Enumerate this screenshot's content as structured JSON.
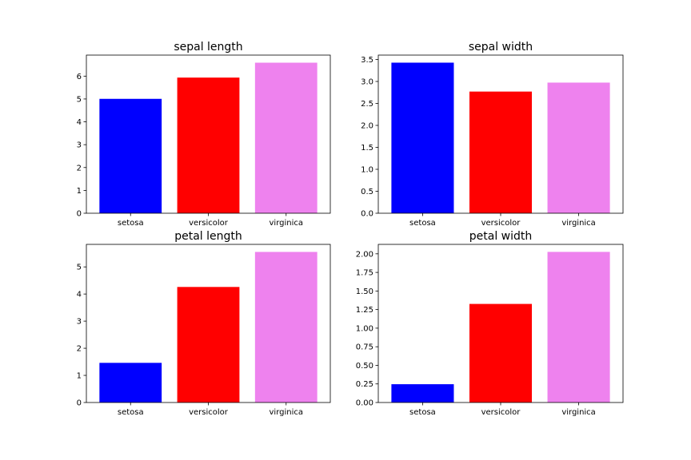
{
  "chart_data": [
    {
      "type": "bar",
      "title": "sepal length",
      "categories": [
        "setosa",
        "versicolor",
        "virginica"
      ],
      "values": [
        5.006,
        5.936,
        6.588
      ],
      "colors": [
        "#0000ff",
        "#ff0000",
        "#ee82ee"
      ],
      "ylim": [
        0,
        6.92
      ],
      "yticks": [
        0,
        1,
        2,
        3,
        4,
        5,
        6
      ],
      "ytick_labels": [
        "0",
        "1",
        "2",
        "3",
        "4",
        "5",
        "6"
      ],
      "xlabel": "",
      "ylabel": ""
    },
    {
      "type": "bar",
      "title": "sepal width",
      "categories": [
        "setosa",
        "versicolor",
        "virginica"
      ],
      "values": [
        3.428,
        2.77,
        2.974
      ],
      "colors": [
        "#0000ff",
        "#ff0000",
        "#ee82ee"
      ],
      "ylim": [
        0,
        3.6
      ],
      "yticks": [
        0,
        0.5,
        1.0,
        1.5,
        2.0,
        2.5,
        3.0,
        3.5
      ],
      "ytick_labels": [
        "0.0",
        "0.5",
        "1.0",
        "1.5",
        "2.0",
        "2.5",
        "3.0",
        "3.5"
      ],
      "xlabel": "",
      "ylabel": ""
    },
    {
      "type": "bar",
      "title": "petal length",
      "categories": [
        "setosa",
        "versicolor",
        "virginica"
      ],
      "values": [
        1.462,
        4.26,
        5.552
      ],
      "colors": [
        "#0000ff",
        "#ff0000",
        "#ee82ee"
      ],
      "ylim": [
        0,
        5.83
      ],
      "yticks": [
        0,
        1,
        2,
        3,
        4,
        5
      ],
      "ytick_labels": [
        "0",
        "1",
        "2",
        "3",
        "4",
        "5"
      ],
      "xlabel": "",
      "ylabel": ""
    },
    {
      "type": "bar",
      "title": "petal width",
      "categories": [
        "setosa",
        "versicolor",
        "virginica"
      ],
      "values": [
        0.246,
        1.326,
        2.026
      ],
      "colors": [
        "#0000ff",
        "#ff0000",
        "#ee82ee"
      ],
      "ylim": [
        0,
        2.127
      ],
      "yticks": [
        0,
        0.25,
        0.5,
        0.75,
        1.0,
        1.25,
        1.5,
        1.75,
        2.0
      ],
      "ytick_labels": [
        "0.00",
        "0.25",
        "0.50",
        "0.75",
        "1.00",
        "1.25",
        "1.50",
        "1.75",
        "2.00"
      ],
      "xlabel": "",
      "ylabel": ""
    }
  ]
}
